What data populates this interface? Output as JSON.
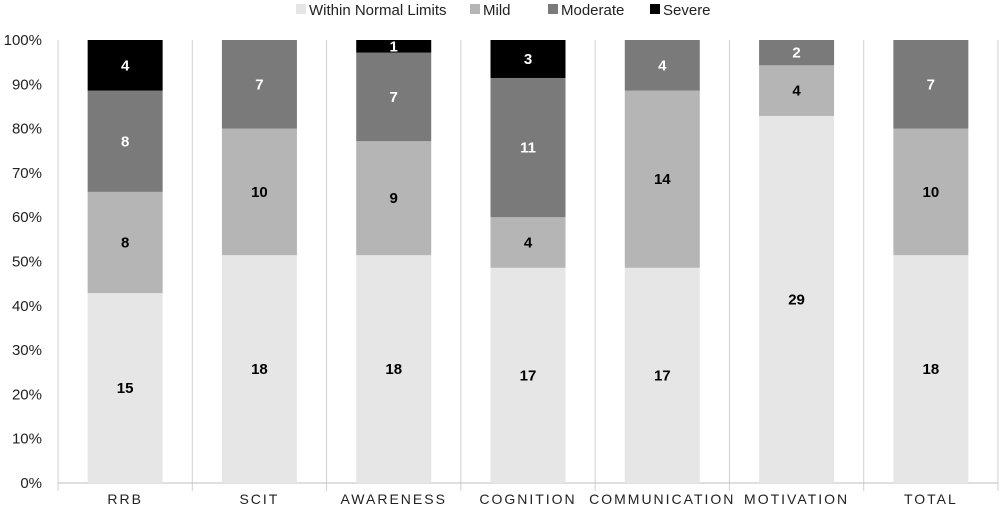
{
  "chart_data": {
    "type": "bar",
    "stacked": true,
    "normalized_percent": true,
    "categories": [
      "RRB",
      "SCIT",
      "AWARENESS",
      "COGNITION",
      "COMMUNICATION",
      "MOTIVATION",
      "TOTAL"
    ],
    "series": [
      {
        "name": "Within Normal Limits",
        "color": "#e6e6e6",
        "label_color": "#000000",
        "values": [
          15,
          18,
          18,
          17,
          17,
          29,
          18
        ]
      },
      {
        "name": "Mild",
        "color": "#b5b5b5",
        "label_color": "#000000",
        "values": [
          8,
          10,
          9,
          4,
          14,
          4,
          10
        ]
      },
      {
        "name": "Moderate",
        "color": "#7a7a7a",
        "label_color": "#ffffff",
        "values": [
          8,
          7,
          7,
          11,
          4,
          2,
          7
        ]
      },
      {
        "name": "Severe",
        "color": "#000000",
        "label_color": "#ffffff",
        "values": [
          4,
          0,
          1,
          3,
          0,
          0,
          0
        ]
      }
    ],
    "y_ticks": [
      "0%",
      "10%",
      "20%",
      "30%",
      "40%",
      "50%",
      "60%",
      "70%",
      "80%",
      "90%",
      "100%"
    ],
    "ylim": [
      0,
      100
    ],
    "legend_position": "top",
    "grid": false,
    "title": "",
    "xlabel": "",
    "ylabel": ""
  }
}
